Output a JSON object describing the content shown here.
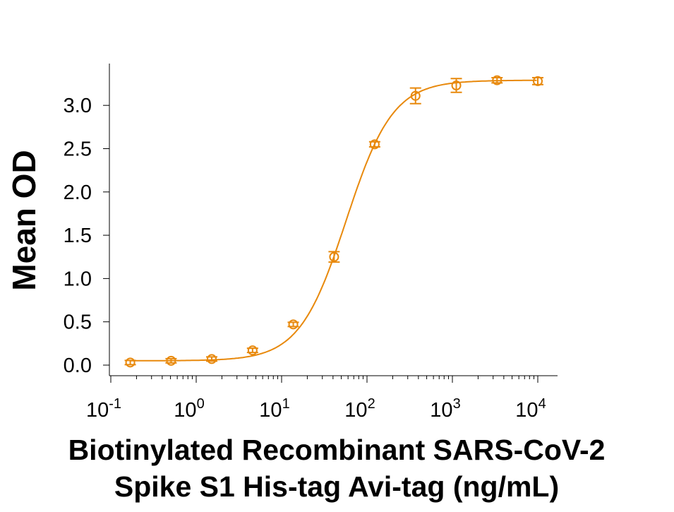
{
  "chart_data": {
    "type": "scatter",
    "title": "",
    "xlabel_lines": [
      "Biotinylated Recombinant SARS-CoV-2",
      "Spike S1 His-tag Avi-tag (ng/mL)"
    ],
    "ylabel": "Mean OD",
    "x_scale": "log",
    "xlim": [
      0.1,
      10000
    ],
    "ylim": [
      0,
      3.4
    ],
    "x_ticks": [
      {
        "base": "10",
        "exp": "-1",
        "value": 0.1
      },
      {
        "base": "10",
        "exp": "0",
        "value": 1
      },
      {
        "base": "10",
        "exp": "1",
        "value": 10
      },
      {
        "base": "10",
        "exp": "2",
        "value": 100
      },
      {
        "base": "10",
        "exp": "3",
        "value": 1000
      },
      {
        "base": "10",
        "exp": "4",
        "value": 10000
      }
    ],
    "y_ticks": [
      "0.0",
      "0.5",
      "1.0",
      "1.5",
      "2.0",
      "2.5",
      "3.0"
    ],
    "grid": false,
    "color": "#E8890C",
    "fit_curve": "4-parameter logistic",
    "points": [
      {
        "x": 0.169,
        "y": 0.03,
        "err": 0.01
      },
      {
        "x": 0.508,
        "y": 0.05,
        "err": 0.01
      },
      {
        "x": 1.52,
        "y": 0.07,
        "err": 0.01
      },
      {
        "x": 4.57,
        "y": 0.17,
        "err": 0.01
      },
      {
        "x": 13.7,
        "y": 0.47,
        "err": 0.02
      },
      {
        "x": 41.2,
        "y": 1.25,
        "err": 0.06
      },
      {
        "x": 123,
        "y": 2.55,
        "err": 0.03
      },
      {
        "x": 370,
        "y": 3.11,
        "err": 0.09
      },
      {
        "x": 1111,
        "y": 3.23,
        "err": 0.08
      },
      {
        "x": 3333,
        "y": 3.29,
        "err": 0.03
      },
      {
        "x": 10000,
        "y": 3.28,
        "err": 0.04
      }
    ]
  }
}
